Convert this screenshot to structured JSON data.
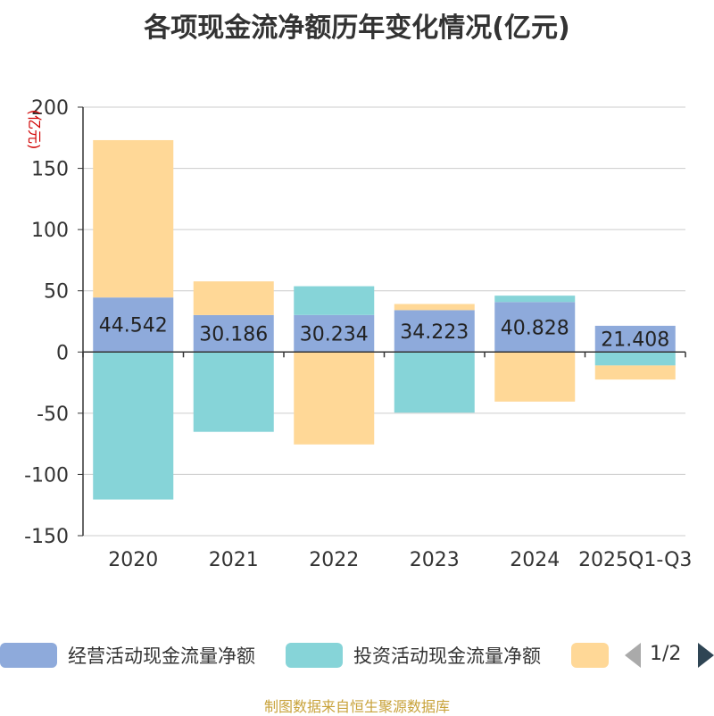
{
  "chart_data": {
    "type": "bar",
    "stacked": true,
    "title": "各项现金流净额历年变化情况(亿元)",
    "ylabel": "(亿元)",
    "xlabel": "",
    "ylim": [
      -150,
      200
    ],
    "yticks": [
      200,
      150,
      100,
      50,
      0,
      -50,
      -100,
      -150
    ],
    "ytick_labels": [
      "200",
      "150",
      "100",
      "50",
      "0",
      "-50",
      "-100",
      "-150"
    ],
    "categories": [
      "2020",
      "2021",
      "2022",
      "2023",
      "2024",
      "2025Q1-Q3"
    ],
    "series": [
      {
        "name": "经营活动现金流量净额",
        "color": "#8eaadb",
        "values": [
          44.542,
          30.186,
          30.234,
          34.223,
          40.828,
          21.408
        ]
      },
      {
        "name": "投资活动现金流量净额",
        "color": "#86d4d8",
        "values": [
          -120.5,
          -65.2,
          23.5,
          -49.5,
          5.2,
          -11.0
        ]
      },
      {
        "name": "",
        "color": "#ffd897",
        "values": [
          128.5,
          27.5,
          -75.5,
          5.0,
          -40.5,
          -11.5
        ]
      }
    ],
    "data_labels": [
      "44.542",
      "30.186",
      "30.234",
      "34.223",
      "40.828",
      "21.408"
    ],
    "legend_position": "bottom",
    "legend_page": "1/2",
    "grid": true
  },
  "source_note": "制图数据来自恒生聚源数据库"
}
